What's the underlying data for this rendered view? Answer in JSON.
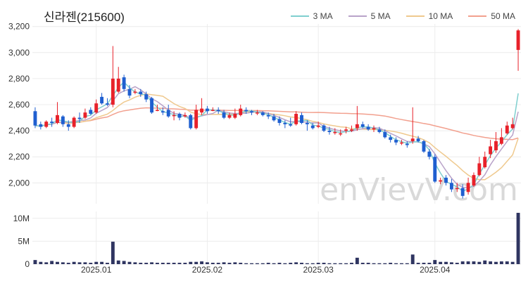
{
  "title": "신라젠(215600)",
  "watermark": "enVievV.com",
  "legend": [
    {
      "label": "3 MA",
      "color": "#7fcfcf"
    },
    {
      "label": "5 MA",
      "color": "#b9a3c9"
    },
    {
      "label": "10 MA",
      "color": "#efc98e"
    },
    {
      "label": "50 MA",
      "color": "#f2a08e"
    }
  ],
  "colors": {
    "up": "#e8212a",
    "down": "#1f5fd0",
    "volume": "#2f3561",
    "grid": "#ececec"
  },
  "chart_data": {
    "type": "candlestick",
    "price_axis": {
      "ticks": [
        "2,000",
        "2,200",
        "2,400",
        "2,600",
        "2,800",
        "3,000",
        "3,200"
      ],
      "range": [
        1840,
        3220
      ],
      "grid": true
    },
    "volume_axis": {
      "ticks": [
        "0",
        "5M",
        "10M"
      ],
      "range": [
        0,
        11500000
      ],
      "grid": true
    },
    "x_labels": [
      {
        "label": "2025.01",
        "index": 11
      },
      {
        "label": "2025.02",
        "index": 31
      },
      {
        "label": "2025.03",
        "index": 51
      },
      {
        "label": "2025.04",
        "index": 72
      }
    ],
    "candles": [
      [
        2550,
        2440,
        2580,
        2420
      ],
      [
        2450,
        2430,
        2470,
        2410
      ],
      [
        2430,
        2470,
        2480,
        2420
      ],
      [
        2470,
        2460,
        2500,
        2430
      ],
      [
        2460,
        2520,
        2620,
        2450
      ],
      [
        2510,
        2450,
        2520,
        2430
      ],
      [
        2450,
        2430,
        2480,
        2400
      ],
      [
        2430,
        2500,
        2510,
        2420
      ],
      [
        2500,
        2490,
        2540,
        2460
      ],
      [
        2500,
        2540,
        2570,
        2490
      ],
      [
        2560,
        2530,
        2580,
        2520
      ],
      [
        2540,
        2610,
        2640,
        2530
      ],
      [
        2660,
        2610,
        2690,
        2600
      ],
      [
        2610,
        2600,
        2650,
        2590
      ],
      [
        2600,
        2800,
        3050,
        2580
      ],
      [
        2700,
        2800,
        2890,
        2690
      ],
      [
        2810,
        2720,
        2830,
        2700
      ],
      [
        2720,
        2670,
        2750,
        2650
      ],
      [
        2700,
        2700,
        2720,
        2680
      ],
      [
        2700,
        2680,
        2720,
        2660
      ],
      [
        2680,
        2640,
        2700,
        2620
      ],
      [
        2650,
        2540,
        2660,
        2530
      ],
      [
        2560,
        2560,
        2600,
        2550
      ],
      [
        2550,
        2540,
        2580,
        2520
      ],
      [
        2560,
        2510,
        2600,
        2500
      ],
      [
        2520,
        2520,
        2550,
        2480
      ],
      [
        2530,
        2500,
        2540,
        2480
      ],
      [
        2510,
        2520,
        2540,
        2500
      ],
      [
        2520,
        2420,
        2530,
        2410
      ],
      [
        2420,
        2560,
        2600,
        2410
      ],
      [
        2540,
        2570,
        2650,
        2520
      ],
      [
        2570,
        2550,
        2590,
        2530
      ],
      [
        2560,
        2560,
        2580,
        2550
      ],
      [
        2560,
        2550,
        2580,
        2530
      ],
      [
        2540,
        2500,
        2560,
        2490
      ],
      [
        2500,
        2520,
        2540,
        2490
      ],
      [
        2500,
        2530,
        2570,
        2490
      ],
      [
        2520,
        2570,
        2600,
        2510
      ],
      [
        2560,
        2550,
        2580,
        2530
      ],
      [
        2550,
        2540,
        2560,
        2520
      ],
      [
        2540,
        2540,
        2560,
        2520
      ],
      [
        2540,
        2520,
        2550,
        2510
      ],
      [
        2520,
        2510,
        2540,
        2490
      ],
      [
        2510,
        2480,
        2530,
        2470
      ],
      [
        2490,
        2460,
        2510,
        2440
      ],
      [
        2460,
        2450,
        2480,
        2420
      ],
      [
        2450,
        2440,
        2500,
        2430
      ],
      [
        2450,
        2530,
        2550,
        2440
      ],
      [
        2520,
        2460,
        2540,
        2450
      ],
      [
        2460,
        2450,
        2480,
        2400
      ],
      [
        2440,
        2420,
        2460,
        2410
      ],
      [
        2430,
        2440,
        2470,
        2420
      ],
      [
        2440,
        2400,
        2450,
        2390
      ],
      [
        2400,
        2390,
        2430,
        2370
      ],
      [
        2390,
        2390,
        2420,
        2370
      ],
      [
        2380,
        2380,
        2410,
        2360
      ],
      [
        2400,
        2410,
        2430,
        2380
      ],
      [
        2400,
        2410,
        2440,
        2390
      ],
      [
        2420,
        2450,
        2590,
        2400
      ],
      [
        2450,
        2430,
        2470,
        2420
      ],
      [
        2430,
        2410,
        2450,
        2400
      ],
      [
        2410,
        2420,
        2440,
        2390
      ],
      [
        2410,
        2390,
        2430,
        2380
      ],
      [
        2390,
        2350,
        2410,
        2340
      ],
      [
        2350,
        2330,
        2370,
        2310
      ],
      [
        2330,
        2310,
        2350,
        2290
      ],
      [
        2310,
        2310,
        2330,
        2290
      ],
      [
        2300,
        2290,
        2320,
        2270
      ],
      [
        2320,
        2340,
        2580,
        2300
      ],
      [
        2340,
        2320,
        2360,
        2310
      ],
      [
        2320,
        2240,
        2330,
        2230
      ],
      [
        2240,
        2200,
        2260,
        2180
      ],
      [
        2200,
        2010,
        2220,
        2000
      ],
      [
        2010,
        2020,
        2040,
        1990
      ],
      [
        2040,
        2000,
        2060,
        1980
      ],
      [
        2000,
        1950,
        2030,
        1930
      ],
      [
        1960,
        1960,
        2000,
        1930
      ],
      [
        1960,
        1900,
        1990,
        1880
      ],
      [
        1930,
        2000,
        2040,
        1910
      ],
      [
        1980,
        2060,
        2080,
        1970
      ],
      [
        2060,
        2150,
        2200,
        2050
      ],
      [
        2120,
        2200,
        2240,
        2110
      ],
      [
        2220,
        2280,
        2330,
        2190
      ],
      [
        2250,
        2320,
        2390,
        2230
      ],
      [
        2300,
        2350,
        2420,
        2290
      ],
      [
        2380,
        2440,
        2470,
        2370
      ],
      [
        2420,
        2450,
        2500,
        2410
      ],
      [
        3020,
        3170,
        3180,
        2860
      ]
    ],
    "volume_millions": [
      0.9,
      0.5,
      0.4,
      0.7,
      0.5,
      0.4,
      0.3,
      0.5,
      0.4,
      0.4,
      0.3,
      0.5,
      0.5,
      0.3,
      4.9,
      0.8,
      0.7,
      0.5,
      0.4,
      0.3,
      0.3,
      0.4,
      0.3,
      0.3,
      0.3,
      0.3,
      0.3,
      0.3,
      0.5,
      0.5,
      0.6,
      0.4,
      0.3,
      0.3,
      0.4,
      0.3,
      0.4,
      0.3,
      0.2,
      0.2,
      0.2,
      0.2,
      0.3,
      0.2,
      0.3,
      0.2,
      0.3,
      0.4,
      0.3,
      0.2,
      0.2,
      0.3,
      0.3,
      0.2,
      0.2,
      0.2,
      0.2,
      0.3,
      1.4,
      0.3,
      0.3,
      0.2,
      0.2,
      0.2,
      0.3,
      0.2,
      0.2,
      0.2,
      2.1,
      0.3,
      0.3,
      0.3,
      0.9,
      0.5,
      0.5,
      0.4,
      0.3,
      0.6,
      0.6,
      0.6,
      0.5,
      0.8,
      0.6,
      0.5,
      0.6,
      0.6,
      0.5,
      11.2
    ]
  }
}
